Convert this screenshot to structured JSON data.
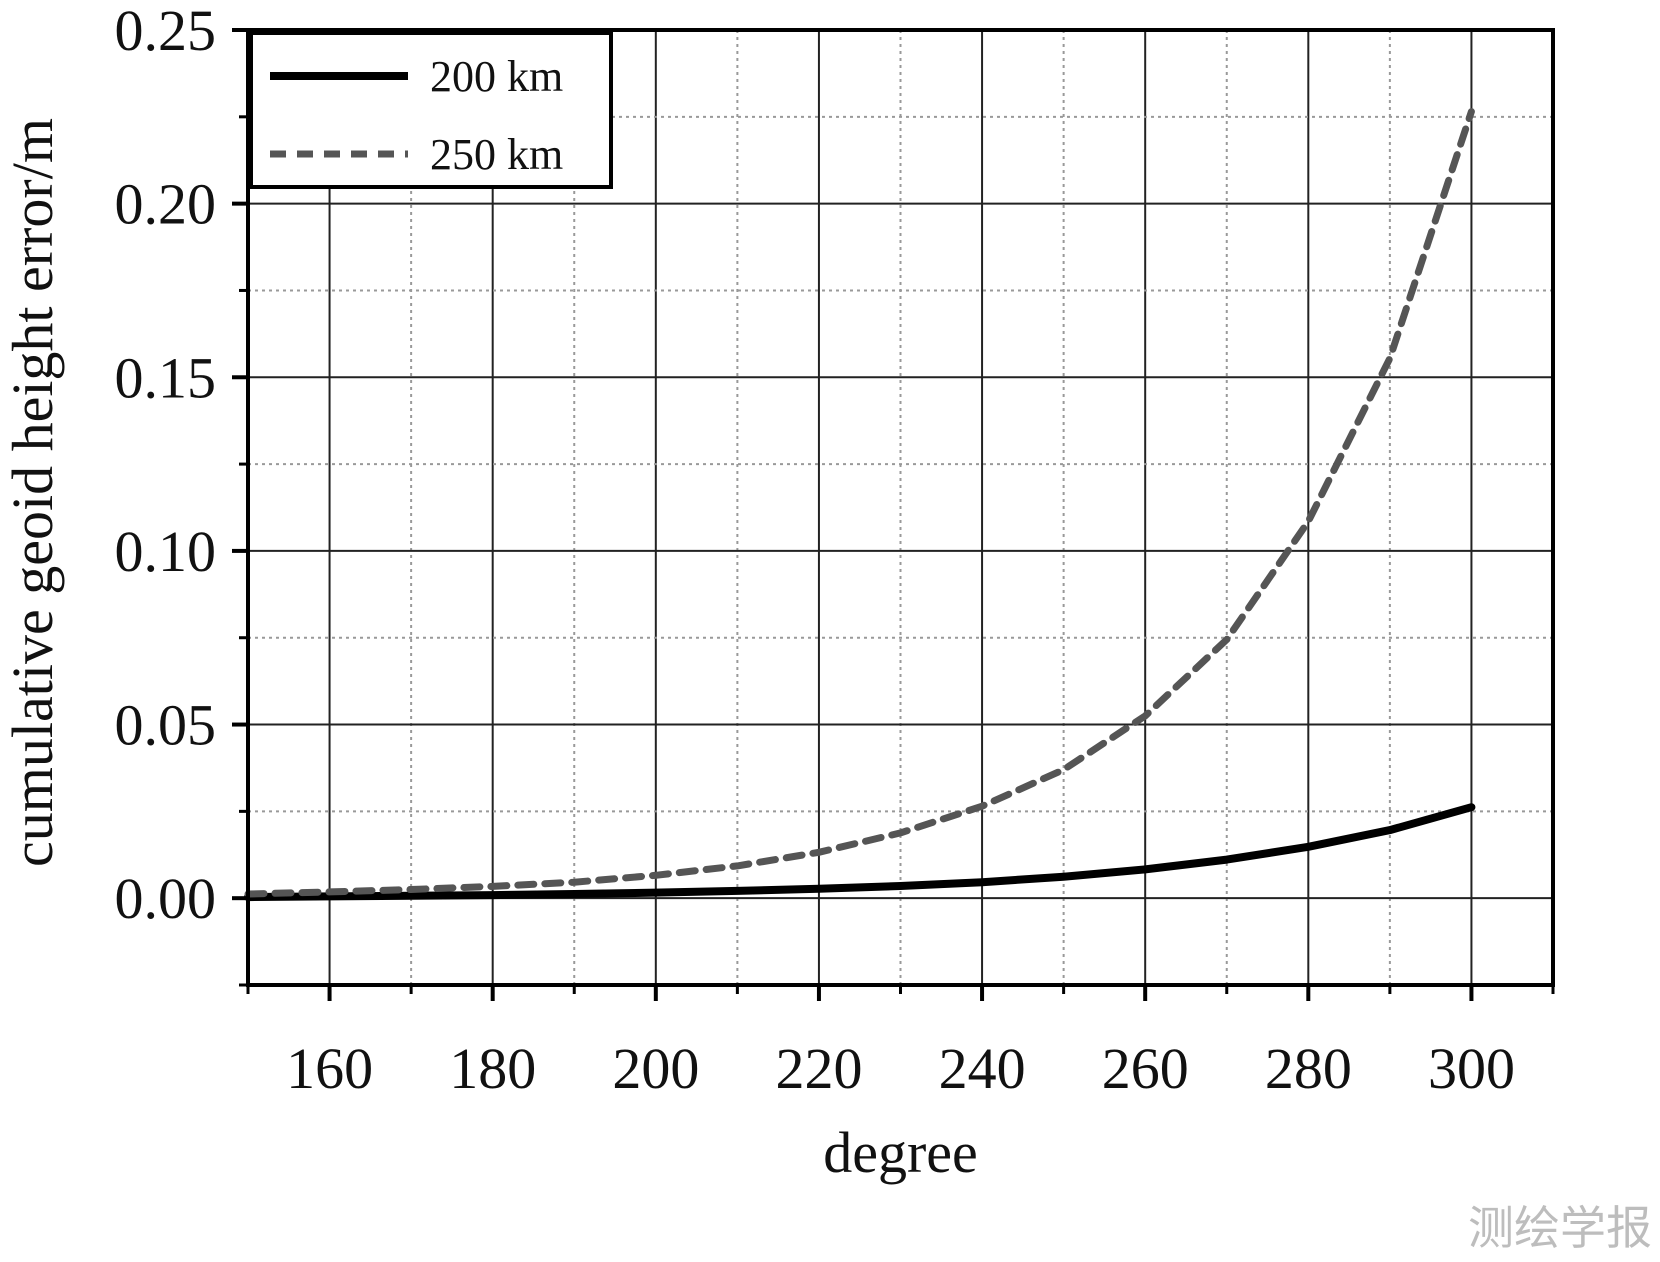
{
  "chart_data": {
    "type": "line",
    "title": "",
    "xlabel": "degree",
    "ylabel": "cumulative geoid height error/m",
    "xlim": [
      150,
      310
    ],
    "ylim": [
      -0.025,
      0.25
    ],
    "x_major_ticks": [
      160,
      180,
      200,
      220,
      240,
      260,
      280,
      300
    ],
    "x_tick_labels": [
      "160",
      "180",
      "200",
      "220",
      "240",
      "260",
      "280",
      "300"
    ],
    "x_minor_ticks": [
      150,
      170,
      190,
      210,
      230,
      250,
      270,
      290,
      310
    ],
    "y_major_ticks": [
      0,
      0.05,
      0.1,
      0.15,
      0.2,
      0.25
    ],
    "y_tick_labels": [
      "0.00",
      "0.05",
      "0.10",
      "0.15",
      "0.20",
      "0.25"
    ],
    "y_minor_ticks": [
      -0.025,
      0.025,
      0.075,
      0.125,
      0.175,
      0.225
    ],
    "grid": true,
    "legend_position": "top-left",
    "series": [
      {
        "name": "200 km",
        "style": "solid",
        "color": "#000000",
        "x": [
          150,
          160,
          170,
          180,
          190,
          200,
          210,
          220,
          230,
          240,
          250,
          260,
          270,
          280,
          290,
          300
        ],
        "y": [
          0.0003,
          0.0005,
          0.0007,
          0.0009,
          0.0012,
          0.0016,
          0.0021,
          0.0027,
          0.0035,
          0.0046,
          0.0062,
          0.0083,
          0.0111,
          0.0148,
          0.0196,
          0.0262
        ]
      },
      {
        "name": "250 km",
        "style": "dashed",
        "color": "#555555",
        "x": [
          150,
          160,
          170,
          180,
          190,
          200,
          210,
          220,
          230,
          240,
          250,
          260,
          270,
          280,
          290,
          300
        ],
        "y": [
          0.0012,
          0.0018,
          0.0025,
          0.0034,
          0.0046,
          0.0066,
          0.0093,
          0.0132,
          0.0188,
          0.0265,
          0.037,
          0.0525,
          0.0745,
          0.1085,
          0.1555,
          0.2265
        ]
      }
    ]
  },
  "watermark": "测绘学报"
}
